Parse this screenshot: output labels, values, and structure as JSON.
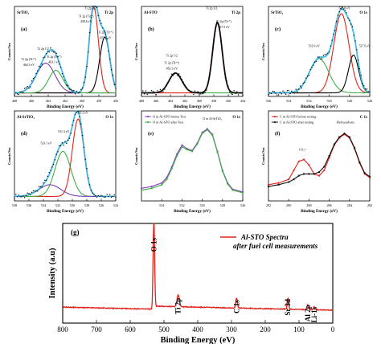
{
  "figure_labels": [
    "(a)",
    "(b)",
    "(c)",
    "(d)",
    "(e)",
    "(f)",
    "(g)"
  ],
  "chart_data": [
    {
      "id": "a",
      "type": "line",
      "panel_label": "(a)",
      "sample_label": "SrTiO₃",
      "orbital_label": "Ti 2p",
      "xlabel": "Binding Energy (eV)",
      "ylabel": "Counts/Sec",
      "x_reversed": true,
      "xlim": [
        456,
        468
      ],
      "ylim": [
        0,
        1
      ],
      "xticks": [
        456,
        458,
        460,
        462,
        464,
        466,
        468
      ],
      "annotations": [
        {
          "text": "Ti 2p 3/2",
          "x": 459.0,
          "y": 0.97
        },
        {
          "text": "Ti 2p (Ti⁴⁺)",
          "x": 459.5,
          "y": 0.88
        },
        {
          "text": "458.6 eV",
          "x": 459.5,
          "y": 0.82
        },
        {
          "text": "Ti 2p (Ti³⁺)",
          "x": 457.2,
          "y": 0.7
        },
        {
          "text": "457.3 eV",
          "x": 457.2,
          "y": 0.64
        },
        {
          "text": "Ti 2p 1/2",
          "x": 464.6,
          "y": 0.52
        },
        {
          "text": "Ti 2p (Ti³⁺)",
          "x": 463.3,
          "y": 0.43
        },
        {
          "text": "463.1 eV",
          "x": 463.3,
          "y": 0.37
        },
        {
          "text": "Ti 2p (Ti⁴⁺)",
          "x": 466.3,
          "y": 0.4
        },
        {
          "text": "464.3 eV",
          "x": 466.3,
          "y": 0.34
        }
      ],
      "peaks": [
        {
          "center": 458.6,
          "height": 0.95,
          "width": 0.55,
          "color": "#e2231a"
        },
        {
          "center": 457.3,
          "height": 0.62,
          "width": 0.6,
          "color": "#000000"
        },
        {
          "center": 464.3,
          "height": 0.33,
          "width": 1.1,
          "color": "#7a3fb0"
        },
        {
          "center": 463.1,
          "height": 0.25,
          "width": 0.85,
          "color": "#3fae49"
        }
      ],
      "baseline": 0.04,
      "envelope_color": "#33b5e5"
    },
    {
      "id": "b",
      "type": "line",
      "panel_label": "(b)",
      "sample_label": "Al-STO",
      "orbital_label": "Ti 2p",
      "xlabel": "Binding Energy (eV)",
      "ylabel": "Counts/Sec",
      "x_reversed": true,
      "xlim": [
        454,
        468
      ],
      "ylim": [
        0,
        1
      ],
      "xticks": [
        454,
        456,
        458,
        460,
        462,
        464,
        466,
        468
      ],
      "annotations": [
        {
          "text": "Ti 2p 3/2",
          "x": 458.3,
          "y": 0.97
        },
        {
          "text": "Ti 2p (Ti⁴⁺)",
          "x": 456.6,
          "y": 0.82
        },
        {
          "text": "457.5 eV",
          "x": 456.6,
          "y": 0.76
        },
        {
          "text": "Ti 2p 1/2",
          "x": 463.8,
          "y": 0.44
        },
        {
          "text": "Ti 2p (Ti⁴⁺)",
          "x": 463.8,
          "y": 0.36
        },
        {
          "text": "463.3 eV",
          "x": 463.8,
          "y": 0.3
        }
      ],
      "peaks": [
        {
          "center": 457.5,
          "height": 0.78,
          "width": 0.65,
          "color": "#e2231a"
        },
        {
          "center": 463.3,
          "height": 0.22,
          "width": 0.9,
          "color": "#3fae49"
        }
      ],
      "baseline": 0.04,
      "envelope_color": "#000000"
    },
    {
      "id": "c",
      "type": "line",
      "panel_label": "(c)",
      "sample_label": "SrTiO₃",
      "orbital_label": "O 1s",
      "xlabel": "Binding Energy (eV)",
      "ylabel": "Counts/Sec",
      "x_reversed": true,
      "xlim": [
        526,
        536
      ],
      "ylim": [
        0,
        1
      ],
      "xticks": [
        526,
        528,
        530,
        532,
        534,
        536
      ],
      "annotations": [
        {
          "text": "528.8 eV",
          "x": 528.5,
          "y": 0.97
        },
        {
          "text": "531.0 eV",
          "x": 531.5,
          "y": 0.55
        },
        {
          "text": "527.6 eV",
          "x": 526.5,
          "y": 0.55
        }
      ],
      "peaks": [
        {
          "center": 528.8,
          "height": 0.88,
          "width": 0.75,
          "color": "#e2231a"
        },
        {
          "center": 531.0,
          "height": 0.38,
          "width": 0.95,
          "color": "#3fae49"
        },
        {
          "center": 527.6,
          "height": 0.42,
          "width": 0.5,
          "color": "#000000"
        }
      ],
      "baseline": 0.04,
      "envelope_color": "#33b5e5"
    },
    {
      "id": "d",
      "type": "line",
      "panel_label": "(d)",
      "sample_label": "Al-SrTiO₃",
      "orbital_label": "O 1s",
      "xlabel": "Binding Energy (eV)",
      "ylabel": "Counts/Sec",
      "x_reversed": true,
      "xlim": [
        524,
        538
      ],
      "ylim": [
        0,
        1
      ],
      "xticks": [
        524,
        526,
        528,
        530,
        532,
        534,
        536,
        538
      ],
      "annotations": [
        {
          "text": "529.2 eV",
          "x": 528.6,
          "y": 0.97
        },
        {
          "text": "531.3 eV",
          "x": 531.2,
          "y": 0.76
        },
        {
          "text": "533.1 eV",
          "x": 533.6,
          "y": 0.63
        }
      ],
      "peaks": [
        {
          "center": 529.2,
          "height": 0.86,
          "width": 0.8,
          "color": "#e2231a"
        },
        {
          "center": 531.3,
          "height": 0.5,
          "width": 1.1,
          "color": "#3fae49"
        },
        {
          "center": 533.1,
          "height": 0.13,
          "width": 1.5,
          "color": "#7a3fb0"
        }
      ],
      "baseline": 0.05,
      "envelope_color": "#33b5e5"
    },
    {
      "id": "e",
      "type": "line",
      "panel_label": "(e)",
      "orbital_label": "O 1s",
      "xlabel": "Binding Energy (eV)",
      "ylabel": "Counts/Sec",
      "x_reversed": true,
      "xlim": [
        526,
        536
      ],
      "ylim": [
        0,
        1
      ],
      "xticks": [
        526,
        528,
        530,
        532,
        534
      ],
      "legend_placement": "top-left",
      "annotations": [
        {
          "text": "O in Al-SrTiO₃",
          "x": 529.0,
          "y": 0.9
        }
      ],
      "series": [
        {
          "name": "O in Al-STO before Test",
          "color": "#8a3fbf",
          "marker": "circle",
          "x": [
            536,
            535,
            534,
            533.5,
            533,
            532.5,
            532,
            531.5,
            531,
            530.5,
            530,
            529.5,
            529,
            528.5,
            528,
            527.5,
            527,
            526
          ],
          "y": [
            0.14,
            0.16,
            0.2,
            0.26,
            0.38,
            0.52,
            0.62,
            0.58,
            0.56,
            0.64,
            0.76,
            0.8,
            0.74,
            0.55,
            0.34,
            0.2,
            0.13,
            0.1
          ]
        },
        {
          "name": "O in Al-STO after Test",
          "color": "#3fae49",
          "marker": "circle",
          "x": [
            536,
            535,
            534,
            533.5,
            533,
            532.5,
            532,
            531.5,
            531,
            530.5,
            530,
            529.5,
            529,
            528.5,
            528,
            527.5,
            527,
            526
          ],
          "y": [
            0.12,
            0.14,
            0.18,
            0.24,
            0.36,
            0.5,
            0.6,
            0.57,
            0.55,
            0.63,
            0.75,
            0.79,
            0.73,
            0.54,
            0.33,
            0.19,
            0.12,
            0.09
          ]
        }
      ]
    },
    {
      "id": "f",
      "type": "line",
      "panel_label": "(f)",
      "orbital_label": "C 1s",
      "xlabel": "Binding Energy (eV)",
      "ylabel": "Counts/Sec",
      "x_reversed": true,
      "xlim": [
        282,
        292
      ],
      "ylim": [
        0,
        1
      ],
      "xticks": [
        282,
        284,
        286,
        288,
        290,
        292
      ],
      "legend_placement": "top-left",
      "annotations": [
        {
          "text": "Hydrocarbons",
          "x": 284.4,
          "y": 0.86
        },
        {
          "text": "CO₃²⁻",
          "x": 288.6,
          "y": 0.56
        }
      ],
      "series": [
        {
          "name": "C in Al-STO before testing",
          "color": "#e2231a",
          "marker": "circle",
          "x": [
            292,
            291,
            290,
            289.5,
            289,
            288.5,
            288,
            287.5,
            287,
            286.5,
            286,
            285.5,
            285,
            284.5,
            284,
            283.5,
            283,
            282.5,
            282
          ],
          "y": [
            0.18,
            0.2,
            0.24,
            0.34,
            0.44,
            0.46,
            0.4,
            0.3,
            0.28,
            0.34,
            0.48,
            0.62,
            0.7,
            0.74,
            0.7,
            0.58,
            0.42,
            0.3,
            0.26
          ]
        },
        {
          "name": "C in Al-STO after testing",
          "color": "#111111",
          "marker": "square",
          "x": [
            292,
            291,
            290,
            289.5,
            289,
            288.5,
            288,
            287.5,
            287,
            286.5,
            286,
            285.5,
            285,
            284.5,
            284,
            283.5,
            283,
            282.5,
            282
          ],
          "y": [
            0.16,
            0.18,
            0.21,
            0.24,
            0.28,
            0.3,
            0.3,
            0.3,
            0.32,
            0.38,
            0.5,
            0.63,
            0.71,
            0.75,
            0.71,
            0.59,
            0.43,
            0.31,
            0.27
          ]
        }
      ]
    },
    {
      "id": "g",
      "type": "line",
      "panel_label": "(g)",
      "xlabel": "Binding Energy (eV)",
      "ylabel": "Intensity (a.u)",
      "x_reversed": true,
      "xlim": [
        0,
        800
      ],
      "ylim": [
        0,
        1
      ],
      "xticks": [
        800,
        700,
        600,
        500,
        400,
        300,
        200,
        100,
        0
      ],
      "legend_placement": "top-right",
      "legend_note": "after fuel cell measurements",
      "series": [
        {
          "name": "Al-STO Spectra",
          "color": "#e2231a"
        }
      ],
      "peaks": [
        {
          "label": "O 1s",
          "x": 530,
          "y": 0.92
        },
        {
          "label": "Ti 2p",
          "x": 458,
          "y": 0.12
        },
        {
          "label": "C 1s",
          "x": 285,
          "y": 0.1
        },
        {
          "label": "Sr 3d",
          "x": 133,
          "y": 0.11
        },
        {
          "label": "Al 2p",
          "x": 74,
          "y": 0.05
        },
        {
          "label": "Li-1s",
          "x": 55,
          "y": 0.03
        }
      ]
    }
  ]
}
